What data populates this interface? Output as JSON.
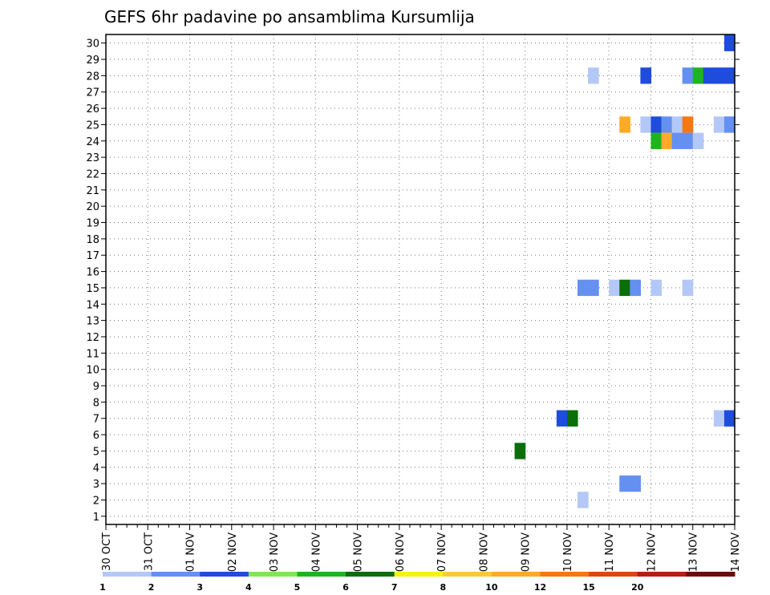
{
  "chart_data": {
    "type": "heatmap",
    "title": "GEFS 6hr padavine po ansamblima Kursumlija",
    "xlabel": "",
    "ylabel": "",
    "x_ticks": [
      "30 OCT",
      "31 OCT",
      "01 NOV",
      "02 NOV",
      "03 NOV",
      "04 NOV",
      "05 NOV",
      "06 NOV",
      "07 NOV",
      "08 NOV",
      "09 NOV",
      "10 NOV",
      "11 NOV",
      "12 NOV",
      "13 NOV",
      "14 NOV"
    ],
    "x_unit": "6-hour steps from 30 OCT 00Z",
    "xlim": [
      0,
      60
    ],
    "ylim": [
      1,
      30
    ],
    "y_ticks": [
      1,
      2,
      3,
      4,
      5,
      6,
      7,
      8,
      9,
      10,
      11,
      12,
      13,
      14,
      15,
      16,
      17,
      18,
      19,
      20,
      21,
      22,
      23,
      24,
      25,
      26,
      27,
      28,
      29,
      30
    ],
    "grid": true,
    "colorbar": {
      "tick_labels": [
        "1",
        "2",
        "3",
        "4",
        "5",
        "6",
        "7",
        "8",
        "10",
        "12",
        "15",
        "20"
      ],
      "colors": [
        "#b4c8f8",
        "#6490f0",
        "#1e4cdc",
        "#7ee65a",
        "#1eb41e",
        "#0a6e0a",
        "#f5f50a",
        "#ffc83c",
        "#ffaa28",
        "#f57812",
        "#dc4614",
        "#b41e14",
        "#6e0a0a"
      ]
    },
    "cells": [
      {
        "member": 30,
        "step": 59.5,
        "bin": 2
      },
      {
        "member": 28,
        "step": 46.5,
        "bin": 0
      },
      {
        "member": 28,
        "step": 51.5,
        "bin": 2
      },
      {
        "member": 28,
        "step": 55.5,
        "bin": 1
      },
      {
        "member": 28,
        "step": 56.5,
        "bin": 4
      },
      {
        "member": 28,
        "step": 57.5,
        "bin": 2
      },
      {
        "member": 28,
        "step": 58.5,
        "bin": 2
      },
      {
        "member": 28,
        "step": 59.5,
        "bin": 2
      },
      {
        "member": 25,
        "step": 49.5,
        "bin": 8
      },
      {
        "member": 25,
        "step": 51.5,
        "bin": 0
      },
      {
        "member": 25,
        "step": 52.5,
        "bin": 2
      },
      {
        "member": 25,
        "step": 53.5,
        "bin": 1
      },
      {
        "member": 25,
        "step": 54.5,
        "bin": 0
      },
      {
        "member": 25,
        "step": 55.5,
        "bin": 9
      },
      {
        "member": 25,
        "step": 58.5,
        "bin": 0
      },
      {
        "member": 25,
        "step": 59.5,
        "bin": 1
      },
      {
        "member": 24,
        "step": 52.5,
        "bin": 4
      },
      {
        "member": 24,
        "step": 53.5,
        "bin": 8
      },
      {
        "member": 24,
        "step": 54.5,
        "bin": 1
      },
      {
        "member": 24,
        "step": 55.5,
        "bin": 1
      },
      {
        "member": 24,
        "step": 56.5,
        "bin": 0
      },
      {
        "member": 15,
        "step": 45.5,
        "bin": 1
      },
      {
        "member": 15,
        "step": 46.5,
        "bin": 1
      },
      {
        "member": 15,
        "step": 48.5,
        "bin": 0
      },
      {
        "member": 15,
        "step": 49.5,
        "bin": 5
      },
      {
        "member": 15,
        "step": 50.5,
        "bin": 1
      },
      {
        "member": 15,
        "step": 52.5,
        "bin": 0
      },
      {
        "member": 15,
        "step": 55.5,
        "bin": 0
      },
      {
        "member": 7,
        "step": 43.5,
        "bin": 2
      },
      {
        "member": 7,
        "step": 44.5,
        "bin": 5
      },
      {
        "member": 7,
        "step": 58.5,
        "bin": 0
      },
      {
        "member": 7,
        "step": 59.5,
        "bin": 2
      },
      {
        "member": 5,
        "step": 39.5,
        "bin": 5
      },
      {
        "member": 3,
        "step": 49.5,
        "bin": 1
      },
      {
        "member": 3,
        "step": 50.5,
        "bin": 1
      },
      {
        "member": 2,
        "step": 45.5,
        "bin": 0
      }
    ]
  }
}
